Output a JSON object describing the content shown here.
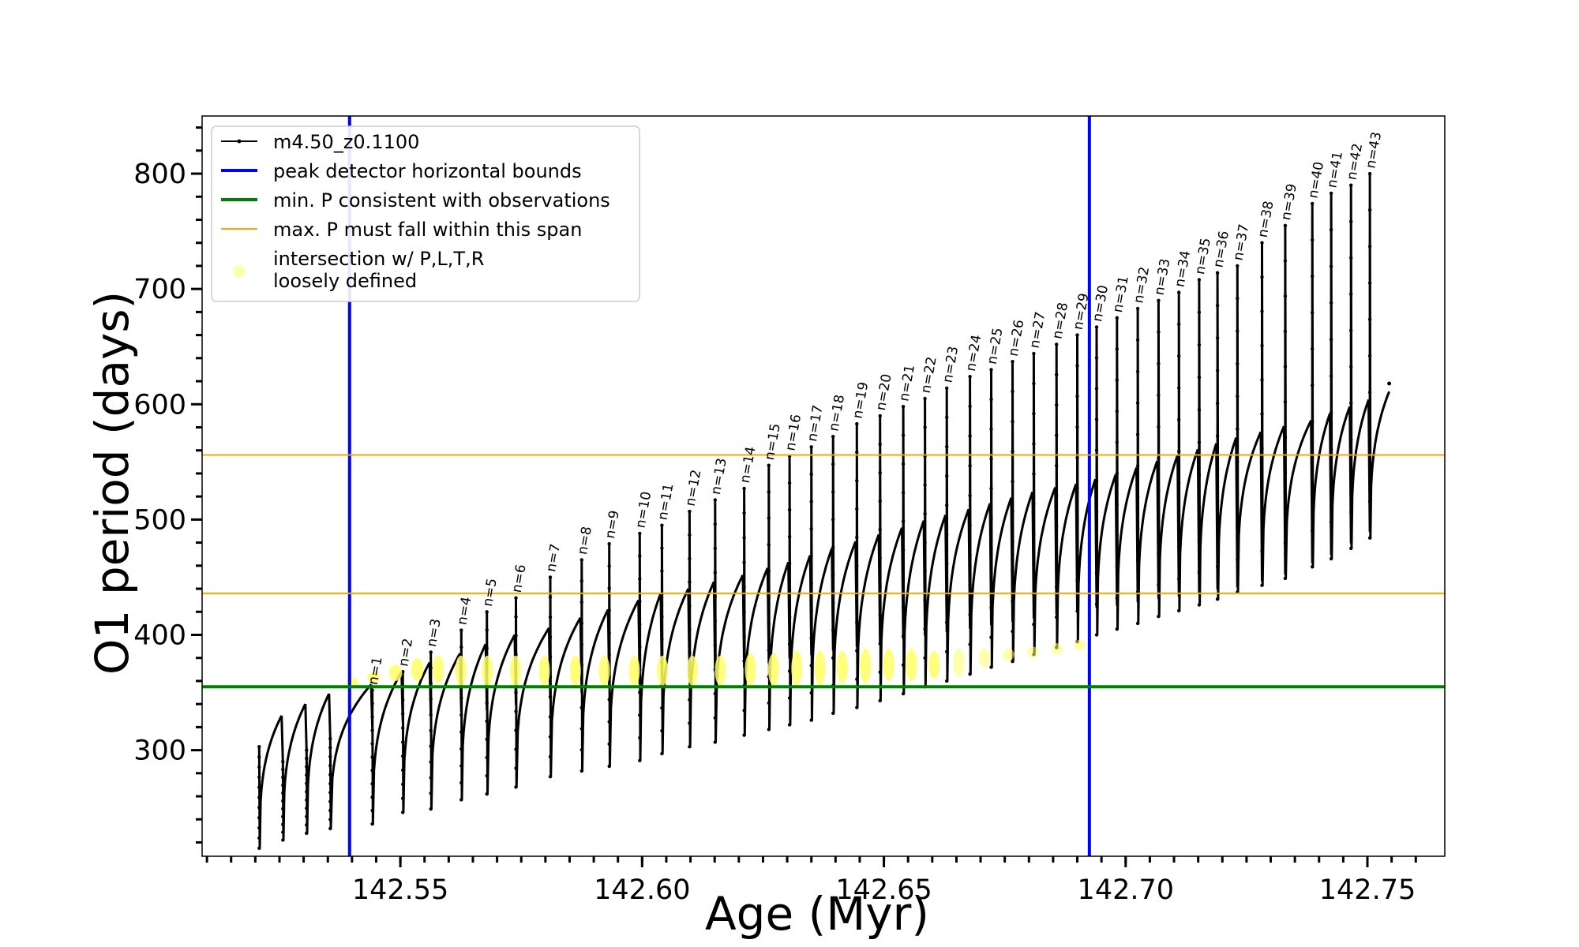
{
  "chart_data": {
    "type": "line",
    "xlabel": "Age (Myr)",
    "ylabel": "O1 period (days)",
    "xlim": [
      142.509,
      142.766
    ],
    "ylim": [
      208,
      850
    ],
    "x_ticks": [
      142.55,
      142.6,
      142.65,
      142.7,
      142.75
    ],
    "x_tick_labels": [
      "142.55",
      "142.60",
      "142.65",
      "142.70",
      "142.75"
    ],
    "y_ticks": [
      300,
      400,
      500,
      600,
      700,
      800
    ],
    "y_tick_labels": [
      "300",
      "400",
      "500",
      "600",
      "700",
      "800"
    ],
    "legend_position": "upper-left",
    "legend": [
      {
        "label": "m4.50_z0.1100",
        "kind": "line-marker",
        "color": "#000000"
      },
      {
        "label": "peak detector horizontal bounds",
        "kind": "line",
        "color": "#0000ff"
      },
      {
        "label": "min. P consistent with observations",
        "kind": "line",
        "color": "#008000"
      },
      {
        "label": "max. P must fall within this span",
        "kind": "line",
        "color": "#ffa500"
      },
      {
        "label": "intersection w/ P,L,T,R\nloosely defined",
        "kind": "marker",
        "color": "#ffff66"
      }
    ],
    "peak_detector_bounds": [
      142.5395,
      142.6925
    ],
    "min_period": 355,
    "max_period_span": [
      436,
      556
    ],
    "series": [
      {
        "name": "m4.50_z0.1100",
        "color": "#000000",
        "pulses": [
          {
            "n": null,
            "age": 142.5208,
            "min": 215,
            "start": 303,
            "peak": 303,
            "plateau": 330
          },
          {
            "n": null,
            "age": 142.5257,
            "min": 222,
            "start": 290,
            "peak": 290,
            "plateau": 340
          },
          {
            "n": null,
            "age": 142.5306,
            "min": 228,
            "start": 300,
            "peak": 300,
            "plateau": 349
          },
          {
            "n": null,
            "age": 142.5355,
            "min": 232,
            "start": 310,
            "peak": 310,
            "plateau": 357
          },
          {
            "n": 1,
            "age": 142.5442,
            "min": 236,
            "start": 320,
            "peak": 352,
            "plateau": 368
          },
          {
            "n": 2,
            "age": 142.5505,
            "min": 246,
            "start": 325,
            "peak": 368,
            "plateau": 376
          },
          {
            "n": 3,
            "age": 142.5563,
            "min": 249,
            "start": 330,
            "peak": 385,
            "plateau": 384
          },
          {
            "n": 4,
            "age": 142.5626,
            "min": 257,
            "start": 333,
            "peak": 404,
            "plateau": 392
          },
          {
            "n": 5,
            "age": 142.5679,
            "min": 262,
            "start": 335,
            "peak": 420,
            "plateau": 400
          },
          {
            "n": 6,
            "age": 142.5739,
            "min": 268,
            "start": 340,
            "peak": 432,
            "plateau": 406
          },
          {
            "n": 7,
            "age": 142.581,
            "min": 277,
            "start": 345,
            "peak": 450,
            "plateau": 415
          },
          {
            "n": 8,
            "age": 142.5875,
            "min": 282,
            "start": 350,
            "peak": 465,
            "plateau": 422
          },
          {
            "n": 9,
            "age": 142.5932,
            "min": 286,
            "start": 355,
            "peak": 479,
            "plateau": 430
          },
          {
            "n": 10,
            "age": 142.5995,
            "min": 291,
            "start": 358,
            "peak": 488,
            "plateau": 436
          },
          {
            "n": 11,
            "age": 142.6041,
            "min": 297,
            "start": 362,
            "peak": 495,
            "plateau": 440
          },
          {
            "n": 12,
            "age": 142.6098,
            "min": 303,
            "start": 365,
            "peak": 507,
            "plateau": 446
          },
          {
            "n": 13,
            "age": 142.6151,
            "min": 307,
            "start": 368,
            "peak": 517,
            "plateau": 452
          },
          {
            "n": 14,
            "age": 142.6211,
            "min": 313,
            "start": 372,
            "peak": 527,
            "plateau": 458
          },
          {
            "n": 15,
            "age": 142.6262,
            "min": 318,
            "start": 376,
            "peak": 547,
            "plateau": 463
          },
          {
            "n": 16,
            "age": 142.6305,
            "min": 322,
            "start": 380,
            "peak": 555,
            "plateau": 469
          },
          {
            "n": 17,
            "age": 142.635,
            "min": 326,
            "start": 383,
            "peak": 563,
            "plateau": 475
          },
          {
            "n": 18,
            "age": 142.6395,
            "min": 332,
            "start": 387,
            "peak": 572,
            "plateau": 481
          },
          {
            "n": 19,
            "age": 142.6444,
            "min": 337,
            "start": 390,
            "peak": 583,
            "plateau": 487
          },
          {
            "n": 20,
            "age": 142.6492,
            "min": 343,
            "start": 394,
            "peak": 590,
            "plateau": 493
          },
          {
            "n": 21,
            "age": 142.654,
            "min": 349,
            "start": 397,
            "peak": 598,
            "plateau": 499
          },
          {
            "n": 22,
            "age": 142.6585,
            "min": 355,
            "start": 400,
            "peak": 605,
            "plateau": 504
          },
          {
            "n": 23,
            "age": 142.663,
            "min": 360,
            "start": 403,
            "peak": 614,
            "plateau": 509
          },
          {
            "n": 24,
            "age": 142.6678,
            "min": 366,
            "start": 406,
            "peak": 624,
            "plateau": 514
          },
          {
            "n": 25,
            "age": 142.6722,
            "min": 372,
            "start": 409,
            "peak": 630,
            "plateau": 519
          },
          {
            "n": 26,
            "age": 142.6766,
            "min": 377,
            "start": 412,
            "peak": 637,
            "plateau": 524
          },
          {
            "n": 27,
            "age": 142.681,
            "min": 383,
            "start": 415,
            "peak": 644,
            "plateau": 528
          },
          {
            "n": 28,
            "age": 142.6857,
            "min": 389,
            "start": 418,
            "peak": 652,
            "plateau": 531
          },
          {
            "n": 29,
            "age": 142.69,
            "min": 394,
            "start": 421,
            "peak": 660,
            "plateau": 535
          },
          {
            "n": 30,
            "age": 142.694,
            "min": 400,
            "start": 424,
            "peak": 667,
            "plateau": 539
          },
          {
            "n": 31,
            "age": 142.6982,
            "min": 405,
            "start": 426,
            "peak": 675,
            "plateau": 545
          },
          {
            "n": 32,
            "age": 142.7025,
            "min": 410,
            "start": 429,
            "peak": 683,
            "plateau": 551
          },
          {
            "n": 33,
            "age": 142.7068,
            "min": 416,
            "start": 432,
            "peak": 690,
            "plateau": 556
          },
          {
            "n": 34,
            "age": 142.711,
            "min": 421,
            "start": 434,
            "peak": 697,
            "plateau": 561
          },
          {
            "n": 35,
            "age": 142.7152,
            "min": 426,
            "start": 437,
            "peak": 708,
            "plateau": 566
          },
          {
            "n": 36,
            "age": 142.719,
            "min": 431,
            "start": 440,
            "peak": 714,
            "plateau": 571
          },
          {
            "n": 37,
            "age": 142.7231,
            "min": 437,
            "start": 442,
            "peak": 720,
            "plateau": 576
          },
          {
            "n": 38,
            "age": 142.7282,
            "min": 443,
            "start": 447,
            "peak": 740,
            "plateau": 581
          },
          {
            "n": 39,
            "age": 142.733,
            "min": 449,
            "start": 453,
            "peak": 755,
            "plateau": 586
          },
          {
            "n": 40,
            "age": 142.7386,
            "min": 459,
            "start": 463,
            "peak": 774,
            "plateau": 592
          },
          {
            "n": 41,
            "age": 142.7425,
            "min": 466,
            "start": 470,
            "peak": 783,
            "plateau": 598
          },
          {
            "n": 42,
            "age": 142.7466,
            "min": 475,
            "start": 480,
            "peak": 790,
            "plateau": 604
          },
          {
            "n": 43,
            "age": 142.7505,
            "min": 484,
            "start": 490,
            "peak": 800,
            "plateau": 611
          }
        ],
        "final_age": 142.7545,
        "final_period": 618
      },
      {
        "name": "intersection w/ P,L,T,R loosely defined",
        "color": "#ffff66",
        "pulses": [
          {
            "age": 142.54,
            "from": 355,
            "to": 362,
            "w": 0.0025
          },
          {
            "age": 142.5445,
            "from": 358,
            "to": 368,
            "w": 0.0026
          },
          {
            "age": 142.549,
            "from": 360,
            "to": 374,
            "w": 0.0027
          },
          {
            "age": 142.5535,
            "from": 360,
            "to": 380,
            "w": 0.0025
          },
          {
            "age": 142.5578,
            "from": 358,
            "to": 382,
            "w": 0.0024
          },
          {
            "age": 142.5625,
            "from": 356,
            "to": 382,
            "w": 0.0023
          },
          {
            "age": 142.568,
            "from": 356,
            "to": 382,
            "w": 0.0022
          },
          {
            "age": 142.5738,
            "from": 356,
            "to": 382,
            "w": 0.0022
          },
          {
            "age": 142.5798,
            "from": 356,
            "to": 382,
            "w": 0.0021
          },
          {
            "age": 142.5862,
            "from": 356,
            "to": 382,
            "w": 0.0021
          },
          {
            "age": 142.5922,
            "from": 356,
            "to": 382,
            "w": 0.002
          },
          {
            "age": 142.5984,
            "from": 356,
            "to": 382,
            "w": 0.002
          },
          {
            "age": 142.6042,
            "from": 356,
            "to": 382,
            "w": 0.002
          },
          {
            "age": 142.6104,
            "from": 356,
            "to": 382,
            "w": 0.0019
          },
          {
            "age": 142.6162,
            "from": 356,
            "to": 382,
            "w": 0.0019
          },
          {
            "age": 142.6224,
            "from": 356,
            "to": 384,
            "w": 0.0019
          },
          {
            "age": 142.6272,
            "from": 356,
            "to": 384,
            "w": 0.0018
          },
          {
            "age": 142.632,
            "from": 356,
            "to": 386,
            "w": 0.0018
          },
          {
            "age": 142.6368,
            "from": 356,
            "to": 386,
            "w": 0.0018
          },
          {
            "age": 142.6414,
            "from": 358,
            "to": 386,
            "w": 0.0017
          },
          {
            "age": 142.6462,
            "from": 358,
            "to": 388,
            "w": 0.0017
          },
          {
            "age": 142.651,
            "from": 360,
            "to": 388,
            "w": 0.0016
          },
          {
            "age": 142.6557,
            "from": 360,
            "to": 388,
            "w": 0.0016
          },
          {
            "age": 142.6604,
            "from": 362,
            "to": 386,
            "w": 0.0015
          },
          {
            "age": 142.6655,
            "from": 364,
            "to": 388,
            "w": 0.0015
          },
          {
            "age": 142.6708,
            "from": 372,
            "to": 388,
            "w": 0.0014
          },
          {
            "age": 142.6758,
            "from": 378,
            "to": 388,
            "w": 0.0014
          },
          {
            "age": 142.6808,
            "from": 382,
            "to": 388,
            "w": 0.0013
          },
          {
            "age": 142.6858,
            "from": 386,
            "to": 390,
            "w": 0.0013
          },
          {
            "age": 142.6905,
            "from": 390,
            "to": 392,
            "w": 0.0012
          }
        ]
      }
    ]
  }
}
